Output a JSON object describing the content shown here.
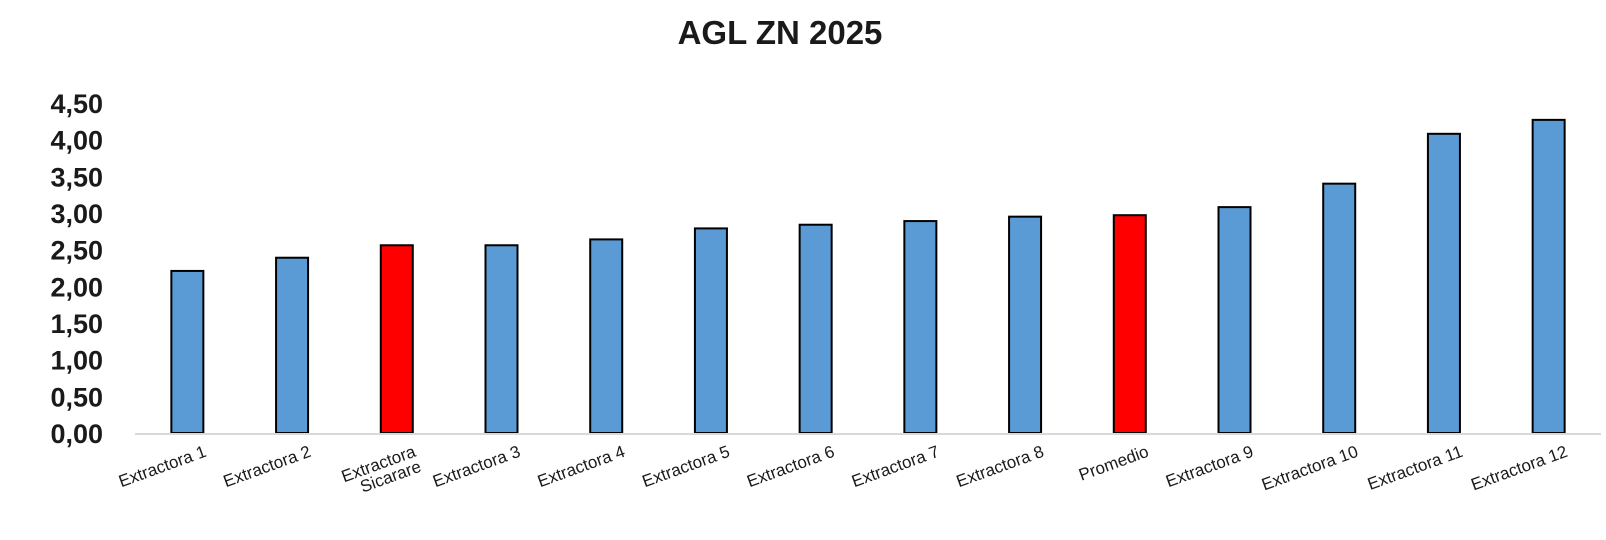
{
  "chart_data": {
    "type": "bar",
    "title": "AGL ZN 2025",
    "xlabel": "",
    "ylabel": "",
    "categories": [
      "Extractora 1",
      "Extractora 2",
      "Extractora Sicarare",
      "Extractora 3",
      "Extractora 4",
      "Extractora 5",
      "Extractora 6",
      "Extractora 7",
      "Extractora 8",
      "Promedio",
      "Extractora 9",
      "Extractora 10",
      "Extractora 11",
      "Extractora 12"
    ],
    "values": [
      2.21,
      2.39,
      2.56,
      2.56,
      2.64,
      2.79,
      2.84,
      2.89,
      2.95,
      2.97,
      3.08,
      3.4,
      4.08,
      4.27
    ],
    "highlighted": [
      "Extractora Sicarare",
      "Promedio"
    ],
    "ylim": [
      0,
      4.5
    ],
    "yticks": [
      "0,00",
      "0,50",
      "1,00",
      "1,50",
      "2,00",
      "2,50",
      "3,00",
      "3,50",
      "4,00",
      "4,50"
    ],
    "grid": false,
    "legend": "none",
    "colors": {
      "bar": "#5b9bd5",
      "highlight": "#ff0000",
      "outline": "#000000",
      "axis": "#d9d9d9",
      "text": "#1a1a1a"
    }
  }
}
